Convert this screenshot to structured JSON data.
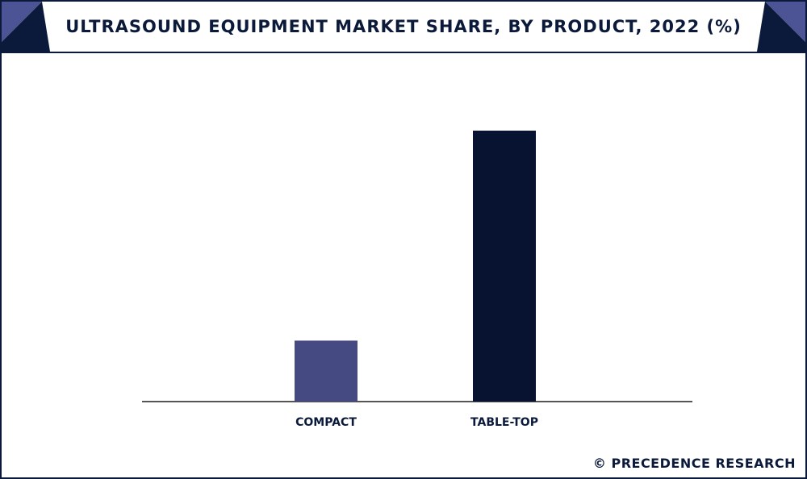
{
  "chart_data": {
    "type": "bar",
    "title": "ULTRASOUND EQUIPMENT MARKET SHARE, BY PRODUCT, 2022 (%)",
    "categories": [
      "COMPACT",
      "TABLE-TOP"
    ],
    "values": [
      22.5,
      100
    ],
    "ylim": [
      0,
      100
    ],
    "xlabel": "",
    "ylabel": "",
    "grid": false,
    "colors": [
      "#454a83",
      "#081332"
    ]
  },
  "credit": "© PRECEDENCE RESEARCH"
}
